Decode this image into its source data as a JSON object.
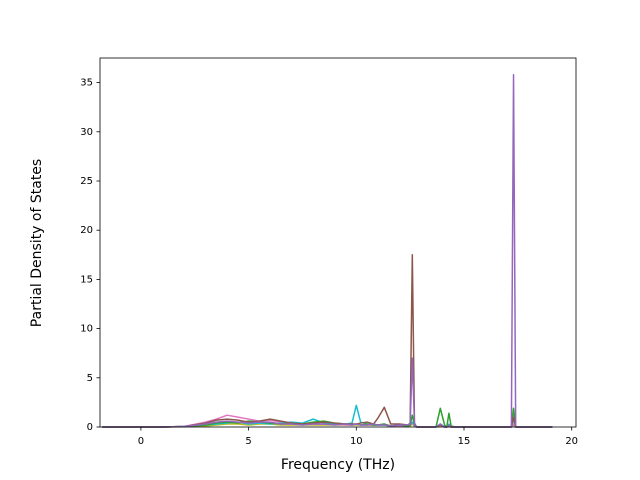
{
  "chart_data": {
    "type": "line",
    "x_label": "Frequency (THz)",
    "y_label": "Partial Density of States",
    "x": [
      -1.8,
      1.0,
      2.0,
      3.0,
      3.5,
      4.0,
      4.5,
      5.0,
      5.5,
      6.0,
      6.5,
      7.0,
      7.5,
      8.0,
      8.5,
      9.0,
      9.5,
      9.8,
      10.0,
      10.2,
      10.5,
      10.8,
      11.0,
      11.3,
      11.6,
      12.0,
      12.4,
      12.5,
      12.6,
      12.7,
      12.8,
      13.0,
      13.7,
      13.9,
      14.1,
      14.2,
      14.3,
      14.4,
      14.6,
      15.0,
      17.0,
      17.2,
      17.3,
      17.4,
      17.6,
      18.0,
      19.1
    ],
    "series": [
      {
        "color": "#bcbd22",
        "values": [
          0,
          0,
          0.02,
          0.1,
          0.2,
          0.3,
          0.3,
          0.2,
          0.3,
          0.3,
          0.2,
          0.2,
          0.2,
          0.2,
          0.2,
          0.2,
          0.2,
          0.2,
          0.2,
          0.2,
          0.2,
          0.2,
          0.2,
          0.2,
          0.1,
          0.1,
          0.1,
          0.1,
          0.3,
          0.1,
          0,
          0,
          0,
          0.1,
          0,
          0,
          0.1,
          0,
          0,
          0,
          0,
          0,
          0.2,
          0,
          0,
          0,
          0
        ]
      },
      {
        "color": "#e377c2",
        "values": [
          0,
          0,
          0.05,
          0.5,
          0.8,
          1.2,
          1.0,
          0.8,
          0.6,
          0.7,
          0.5,
          0.4,
          0.3,
          0.3,
          0.3,
          0.3,
          0.2,
          0.2,
          0.3,
          0.2,
          0.2,
          0.2,
          0.2,
          0.3,
          0.1,
          0.1,
          0.1,
          0.2,
          0.4,
          0.1,
          0,
          0,
          0,
          0.2,
          0,
          0,
          0.1,
          0,
          0,
          0,
          0,
          0,
          0.3,
          0,
          0,
          0,
          0
        ]
      },
      {
        "color": "#17becf",
        "values": [
          0,
          0,
          0.05,
          0.2,
          0.3,
          0.4,
          0.5,
          0.3,
          0.4,
          0.3,
          0.4,
          0.5,
          0.4,
          0.8,
          0.4,
          0.3,
          0.3,
          0.4,
          2.2,
          0.5,
          0.3,
          0.2,
          0.2,
          0.2,
          0.1,
          0.2,
          0.1,
          0.2,
          0.5,
          0.2,
          0,
          0,
          0,
          0.3,
          0,
          0,
          0.3,
          0,
          0,
          0,
          0,
          0,
          0.8,
          0,
          0,
          0,
          0
        ]
      },
      {
        "color": "#2ca02c",
        "values": [
          0,
          0,
          0.05,
          0.2,
          0.4,
          0.5,
          0.4,
          0.6,
          0.5,
          0.4,
          0.3,
          0.4,
          0.3,
          0.5,
          0.6,
          0.4,
          0.3,
          0.2,
          0.3,
          0.2,
          0.3,
          0.2,
          0.2,
          0.3,
          0.1,
          0.2,
          0.1,
          0.2,
          1.2,
          0.2,
          0,
          0,
          0,
          1.9,
          0.2,
          0,
          1.4,
          0.1,
          0,
          0,
          0,
          0,
          1.9,
          0,
          0,
          0,
          0
        ]
      },
      {
        "color": "#8c564b",
        "values": [
          0,
          0,
          0.05,
          0.4,
          0.7,
          0.8,
          0.7,
          0.5,
          0.6,
          0.8,
          0.6,
          0.4,
          0.3,
          0.4,
          0.5,
          0.4,
          0.3,
          0.3,
          0.3,
          0.4,
          0.5,
          0.3,
          0.9,
          2.0,
          0.3,
          0.3,
          0.2,
          0.4,
          17.5,
          0.4,
          0,
          0,
          0,
          0.2,
          0,
          0,
          0.1,
          0,
          0,
          0,
          0,
          0,
          1.0,
          0,
          0,
          0,
          0
        ]
      },
      {
        "color": "#9467bd",
        "values": [
          0,
          0,
          0.05,
          0.3,
          0.5,
          0.6,
          0.5,
          0.4,
          0.5,
          0.5,
          0.3,
          0.3,
          0.2,
          0.3,
          0.3,
          0.2,
          0.3,
          0.2,
          0.3,
          0.2,
          0.2,
          0.3,
          0.2,
          0.2,
          0.1,
          0.2,
          0.2,
          0.3,
          7.0,
          0.3,
          0,
          0,
          0,
          0.3,
          0,
          0,
          0.2,
          0,
          0,
          0,
          0,
          0,
          35.8,
          0,
          0,
          0,
          0
        ]
      }
    ],
    "xlim": [
      -1.9,
      20.2
    ],
    "xticks": [
      0,
      5,
      10,
      15,
      20
    ],
    "ylim": [
      0,
      37.5
    ],
    "yticks": [
      0,
      5,
      10,
      15,
      20,
      25,
      30,
      35
    ]
  }
}
